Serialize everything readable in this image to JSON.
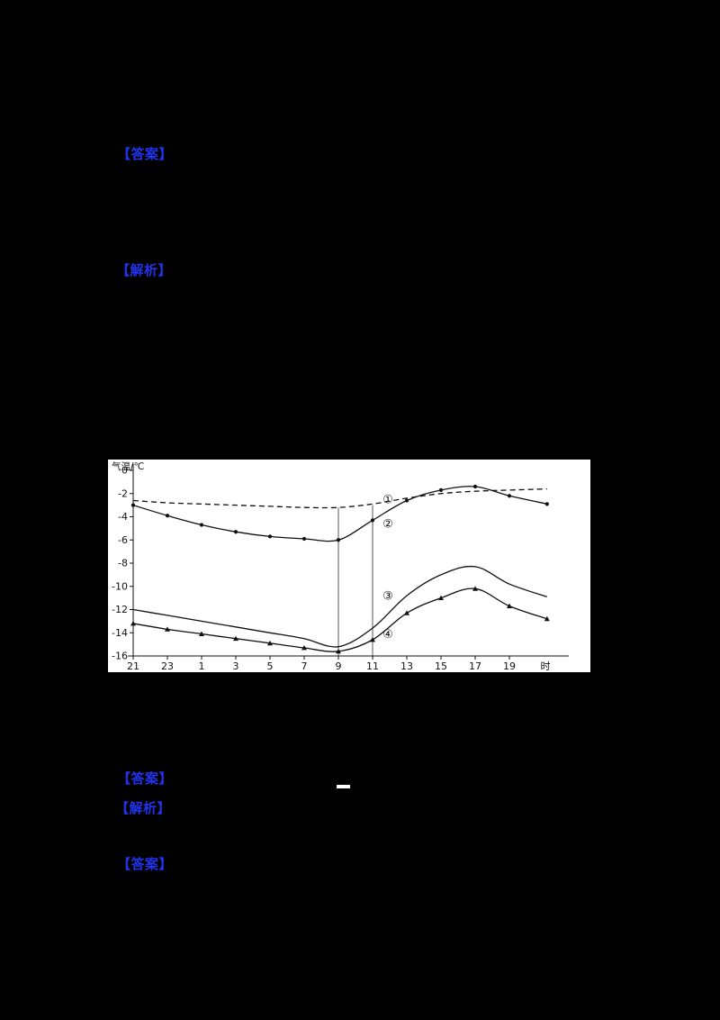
{
  "page": {
    "background": "#000000"
  },
  "annotations": {
    "color": "#2233ee",
    "m1": "【答案】",
    "m2": "【解析】",
    "m3": "【答案】",
    "m4": "【解析】",
    "m5": "【答案】"
  },
  "chart_data": {
    "type": "line",
    "ylabel": "气温/℃",
    "x_unit": "时",
    "categories": [
      "21",
      "23",
      "1",
      "3",
      "5",
      "7",
      "9",
      "11",
      "13",
      "15",
      "17",
      "19"
    ],
    "yticks": [
      0,
      -2,
      -4,
      -6,
      -8,
      -10,
      -12,
      -14,
      -16
    ],
    "ylim": [
      -16,
      0
    ],
    "grid": false,
    "legend": "inline-circled-numbers",
    "series": [
      {
        "name": "①",
        "line_style": "dashed",
        "marker": "none",
        "values": [
          -2.6,
          -2.8,
          -2.9,
          -3.0,
          -3.1,
          -3.2,
          -3.2,
          -2.9,
          -2.4,
          -2.0,
          -1.8,
          -1.7
        ],
        "end_value": -1.6
      },
      {
        "name": "②",
        "line_style": "solid",
        "marker": "dot",
        "values": [
          -3.0,
          -3.9,
          -4.7,
          -5.3,
          -5.7,
          -5.9,
          -6.0,
          -4.3,
          -2.6,
          -1.7,
          -1.4,
          -2.2
        ],
        "end_value": -2.9
      },
      {
        "name": "③",
        "line_style": "solid",
        "marker": "none",
        "values": [
          -12.0,
          -12.5,
          -13.0,
          -13.5,
          -14.0,
          -14.5,
          -15.2,
          -13.6,
          -10.8,
          -9.0,
          -8.3,
          -9.8
        ],
        "end_value": -10.9
      },
      {
        "name": "④",
        "line_style": "solid",
        "marker": "triangle",
        "values": [
          -13.2,
          -13.7,
          -14.1,
          -14.5,
          -14.9,
          -15.3,
          -15.6,
          -14.6,
          -12.3,
          -11.0,
          -10.2,
          -11.7
        ],
        "end_value": -12.8
      }
    ],
    "series_labels": [
      {
        "text": "①",
        "hour_index": 7.45,
        "temp": -2.5
      },
      {
        "text": "②",
        "hour_index": 7.45,
        "temp": -4.6
      },
      {
        "text": "③",
        "hour_index": 7.45,
        "temp": -10.8
      },
      {
        "text": "④",
        "hour_index": 7.45,
        "temp": -14.1
      }
    ],
    "ref_lines": [
      {
        "hour": "9",
        "hour_index": 6,
        "from_temp": -3.2
      },
      {
        "hour": "11",
        "hour_index": 7,
        "from_temp": -3.0
      }
    ]
  }
}
